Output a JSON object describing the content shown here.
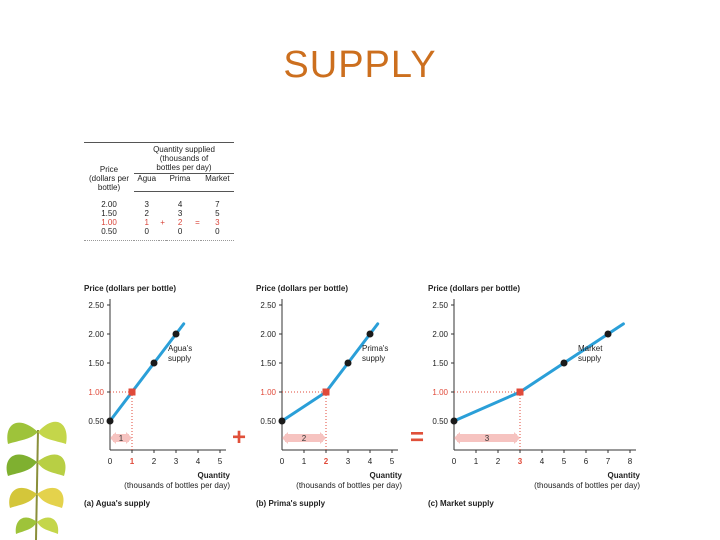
{
  "title": "SUPPLY",
  "table": {
    "price_header_lines": [
      "Price",
      "(dollars per",
      "bottle)"
    ],
    "qty_header_lines": [
      "Quantity supplied",
      "(thousands of",
      "bottles per day)"
    ],
    "col_headers": [
      "Agua",
      "Prima",
      "Market"
    ],
    "rows": [
      {
        "price": "2.00",
        "agua": "3",
        "plus": "",
        "prima": "4",
        "eq": "",
        "market": "7",
        "highlight": false
      },
      {
        "price": "1.50",
        "agua": "2",
        "plus": "",
        "prima": "3",
        "eq": "",
        "market": "5",
        "highlight": false
      },
      {
        "price": "1.00",
        "agua": "1",
        "plus": "+",
        "prima": "2",
        "eq": "=",
        "market": "3",
        "highlight": true
      },
      {
        "price": "0.50",
        "agua": "0",
        "plus": "",
        "prima": "0",
        "eq": "",
        "market": "0",
        "highlight": false
      }
    ]
  },
  "operators": {
    "plus": "+",
    "equals": "="
  },
  "colors": {
    "line": "#2a9fd8",
    "point": "#1a1a1a",
    "highlight": "#e04a3a",
    "arrow": "#f6c3c0",
    "title": "#cc6f1e",
    "operator": "#e0503a"
  },
  "icons": {
    "decoration": "ginkgo-leaf-icon"
  },
  "chart_data": [
    {
      "type": "line",
      "ylabel": "Price (dollars per bottle)",
      "xlabel_lines": [
        "Quantity",
        "(thousands of bottles per day)"
      ],
      "caption": "(a) Agua's supply",
      "curve_label_lines": [
        "Agua's",
        "supply"
      ],
      "xlim": [
        0,
        5
      ],
      "ylim": [
        0,
        2.5
      ],
      "x_ticks": [
        "0",
        "1",
        "2",
        "3",
        "4",
        "5"
      ],
      "y_ticks": [
        "0.50",
        "1.00",
        "1.50",
        "2.00",
        "2.50"
      ],
      "points": [
        {
          "x": 0,
          "y": 0.5
        },
        {
          "x": 1,
          "y": 1.0
        },
        {
          "x": 2,
          "y": 1.5
        },
        {
          "x": 3,
          "y": 2.0
        }
      ],
      "highlight": {
        "x": 1,
        "y": 1.0
      },
      "arrow_label": "1"
    },
    {
      "type": "line",
      "ylabel": "Price (dollars per bottle)",
      "xlabel_lines": [
        "Quantity",
        "(thousands of bottles per day)"
      ],
      "caption": "(b) Prima's supply",
      "curve_label_lines": [
        "Prima's",
        "supply"
      ],
      "xlim": [
        0,
        5
      ],
      "ylim": [
        0,
        2.5
      ],
      "x_ticks": [
        "0",
        "1",
        "2",
        "3",
        "4",
        "5"
      ],
      "y_ticks": [
        "0.50",
        "1.00",
        "1.50",
        "2.00",
        "2.50"
      ],
      "points": [
        {
          "x": 0,
          "y": 0.5
        },
        {
          "x": 2,
          "y": 1.0
        },
        {
          "x": 3,
          "y": 1.5
        },
        {
          "x": 4,
          "y": 2.0
        }
      ],
      "highlight": {
        "x": 2,
        "y": 1.0
      },
      "arrow_label": "2"
    },
    {
      "type": "line",
      "ylabel": "Price (dollars per bottle)",
      "xlabel_lines": [
        "Quantity",
        "(thousands of bottles per day)"
      ],
      "caption": "(c) Market supply",
      "curve_label_lines": [
        "Market",
        "supply"
      ],
      "xlim": [
        0,
        8
      ],
      "ylim": [
        0,
        2.5
      ],
      "x_ticks": [
        "0",
        "1",
        "2",
        "3",
        "4",
        "5",
        "6",
        "7",
        "8"
      ],
      "y_ticks": [
        "0.50",
        "1.00",
        "1.50",
        "2.00",
        "2.50"
      ],
      "points": [
        {
          "x": 0,
          "y": 0.5
        },
        {
          "x": 3,
          "y": 1.0
        },
        {
          "x": 5,
          "y": 1.5
        },
        {
          "x": 7,
          "y": 2.0
        }
      ],
      "highlight": {
        "x": 3,
        "y": 1.0
      },
      "arrow_label": "3"
    }
  ]
}
